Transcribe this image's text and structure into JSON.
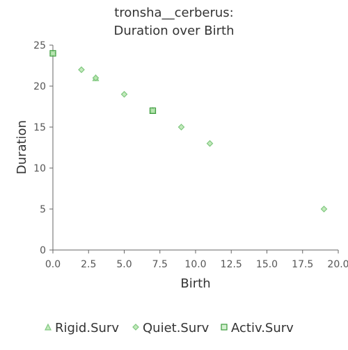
{
  "chart_data": {
    "type": "scatter",
    "title": "tronsha__cerberus:\nDuration over Birth",
    "title_lines": [
      "tronsha__cerberus:",
      "Duration over Birth"
    ],
    "xlabel": "Birth",
    "ylabel": "Duration",
    "xlim": [
      0,
      20
    ],
    "ylim": [
      0,
      25
    ],
    "x_ticks": [
      "0.0",
      "2.5",
      "5.0",
      "7.5",
      "10.0",
      "12.5",
      "15.0",
      "17.5",
      "20.0"
    ],
    "y_ticks": [
      "0",
      "5",
      "10",
      "15",
      "20",
      "25"
    ],
    "grid": false,
    "legend_position": "bottom",
    "series": [
      {
        "name": "Rigid.Surv",
        "marker": "triangle",
        "color": "#7fc77f",
        "points": [
          [
            7,
            17
          ],
          [
            3,
            21
          ]
        ]
      },
      {
        "name": "Quiet.Surv",
        "marker": "diamond",
        "color": "#7fc77f",
        "points": [
          [
            0,
            24
          ],
          [
            2,
            22
          ],
          [
            3,
            21
          ],
          [
            5,
            19
          ],
          [
            7,
            17
          ],
          [
            9,
            15
          ],
          [
            11,
            13
          ],
          [
            19,
            5
          ]
        ]
      },
      {
        "name": "Activ.Surv",
        "marker": "square",
        "color": "#3a9a3a",
        "points": [
          [
            0,
            24
          ],
          [
            7,
            17
          ]
        ]
      }
    ]
  }
}
